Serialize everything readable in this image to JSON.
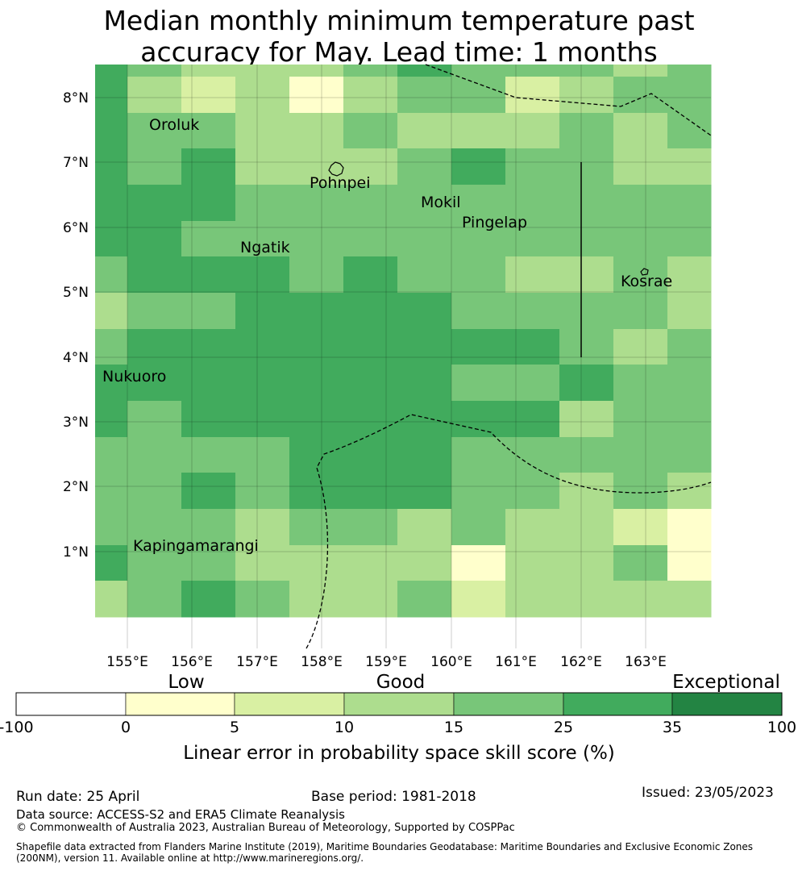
{
  "title_line1": "Median monthly minimum temperature past",
  "title_line2": "accuracy for May. Lead time: 1 months",
  "map": {
    "lon_labels": [
      "155°E",
      "156°E",
      "157°E",
      "158°E",
      "159°E",
      "160°E",
      "161°E",
      "162°E",
      "163°E"
    ],
    "lat_labels": [
      "8°N",
      "7°N",
      "6°N",
      "5°N",
      "4°N",
      "3°N",
      "2°N",
      "1°N"
    ],
    "grid": [
      [
        5,
        4,
        3,
        3,
        3,
        4,
        5,
        4,
        4,
        4,
        3,
        4
      ],
      [
        5,
        3,
        2,
        3,
        1,
        3,
        4,
        4,
        2,
        3,
        4,
        4
      ],
      [
        5,
        4,
        4,
        3,
        3,
        4,
        3,
        3,
        3,
        4,
        3,
        4
      ],
      [
        5,
        4,
        5,
        3,
        3,
        3,
        4,
        5,
        4,
        4,
        3,
        3
      ],
      [
        5,
        5,
        5,
        4,
        4,
        4,
        4,
        4,
        4,
        4,
        4,
        4
      ],
      [
        5,
        5,
        4,
        4,
        4,
        4,
        4,
        4,
        4,
        4,
        4,
        4
      ],
      [
        4,
        5,
        5,
        5,
        4,
        5,
        4,
        4,
        3,
        3,
        4,
        3
      ],
      [
        3,
        4,
        4,
        5,
        5,
        5,
        5,
        4,
        4,
        4,
        4,
        3
      ],
      [
        4,
        5,
        5,
        5,
        5,
        5,
        5,
        5,
        5,
        4,
        3,
        4
      ],
      [
        5,
        5,
        5,
        5,
        5,
        5,
        5,
        4,
        4,
        5,
        4,
        4
      ],
      [
        5,
        4,
        5,
        5,
        5,
        5,
        5,
        5,
        5,
        3,
        4,
        4
      ],
      [
        4,
        4,
        4,
        4,
        5,
        5,
        5,
        4,
        4,
        4,
        4,
        4
      ],
      [
        4,
        4,
        5,
        4,
        5,
        5,
        5,
        4,
        4,
        3,
        4,
        3
      ],
      [
        4,
        4,
        4,
        3,
        4,
        4,
        3,
        4,
        3,
        3,
        2,
        1
      ],
      [
        5,
        4,
        4,
        3,
        3,
        3,
        3,
        1,
        3,
        3,
        4,
        1
      ],
      [
        3,
        4,
        5,
        4,
        3,
        3,
        4,
        2,
        3,
        3,
        3,
        3
      ]
    ],
    "places": [
      "Oroluk",
      "Pohnpei",
      "Mokil",
      "Pingelap",
      "Ngatik",
      "Kosrae",
      "Nukuoro",
      "Kapingamarangi"
    ]
  },
  "legend": {
    "category_labels": [
      "Low",
      "Good",
      "Exceptional"
    ],
    "tick_labels": [
      "-100",
      "0",
      "5",
      "10",
      "15",
      "25",
      "35",
      "100"
    ],
    "colors": [
      "#ffffff",
      "#ffffcc",
      "#d9f0a3",
      "#addd8e",
      "#78c679",
      "#41ab5d",
      "#238443"
    ],
    "axis_label": "Linear error in probability space skill score (%)"
  },
  "footer": {
    "run_date": "Run date: 25 April",
    "base_period": "Base period: 1981-2018",
    "issued": "Issued: 23/05/2023",
    "data_source": "Data source: ACCESS-S2 and ERA5 Climate Reanalysis",
    "copyright": "© Commonwealth of Australia 2023, Australian Bureau of Meteorology, Supported by COSPPac",
    "shapefile": "Shapefile data extracted from Flanders Marine Institute (2019), Maritime Boundaries Geodatabase: Maritime Boundaries and Exclusive Economic Zones (200NM), version 11. Available online at http://www.marineregions.org/."
  }
}
